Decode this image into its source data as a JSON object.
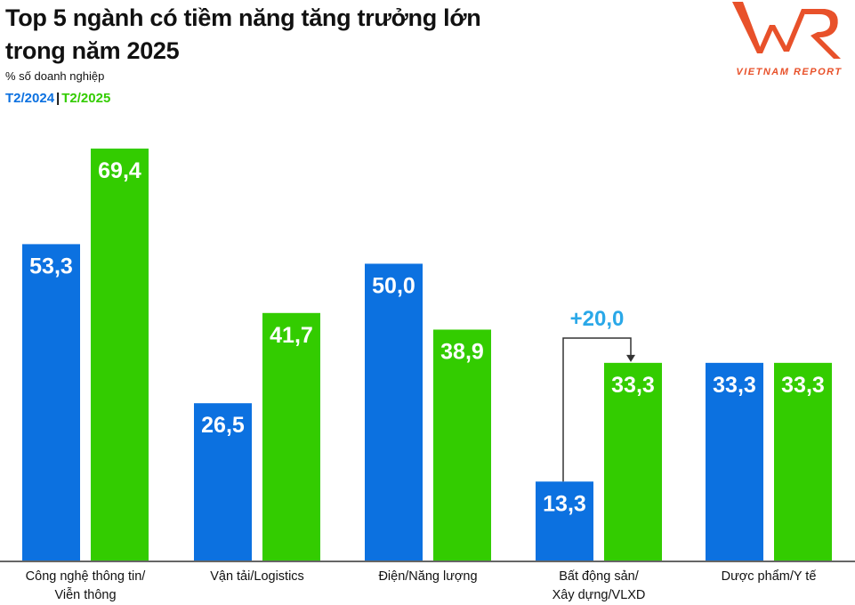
{
  "header": {
    "title_line1": "Top 5 ngành có tiềm năng tăng trưởng lớn",
    "title_line2": "trong năm 2025",
    "subtitle": "% số doanh nghiệp"
  },
  "logo": {
    "text": "VNR",
    "tagline": "VIETNAM REPORT",
    "color": "#e8512a"
  },
  "chart_data": {
    "type": "bar",
    "title": "Top 5 ngành có tiềm năng tăng trưởng lớn trong năm 2025",
    "ylabel": "% số doanh nghiệp",
    "ylim": [
      0,
      70
    ],
    "grid": false,
    "legend_placement": "top-left",
    "categories": [
      "Công nghệ thông tin/\nViễn thông",
      "Vận tải/Logistics",
      "Điện/Năng lượng",
      "Bất động sản/\nXây dựng/VLXD",
      "Dược phẩm/Y tế"
    ],
    "series": [
      {
        "name": "T2/2024",
        "color": "#0c71e0",
        "values": [
          53.3,
          26.5,
          50.0,
          13.3,
          33.3
        ],
        "labels": [
          "53,3",
          "26,5",
          "50,0",
          "13,3",
          "33,3"
        ]
      },
      {
        "name": "T2/2025",
        "color": "#33cc00",
        "values": [
          69.4,
          41.7,
          38.9,
          33.3,
          33.3
        ],
        "labels": [
          "69,4",
          "41,7",
          "38,9",
          "33,3",
          "33,3"
        ]
      }
    ],
    "annotations": [
      {
        "category_index": 3,
        "text": "+20,0",
        "color": "#2aa8e8"
      }
    ]
  }
}
